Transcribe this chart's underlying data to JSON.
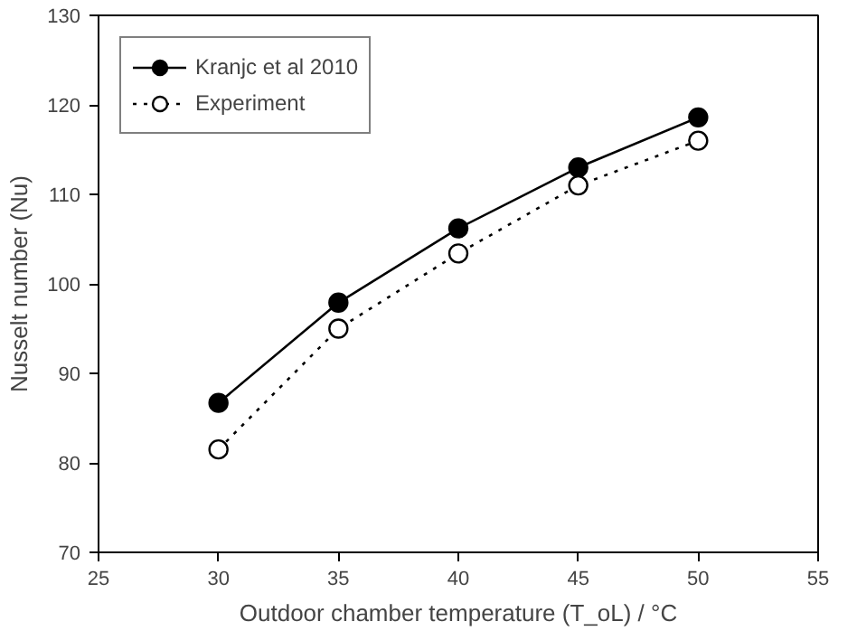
{
  "chart_data": {
    "type": "line",
    "xlabel": "Outdoor chamber temperature (T_oL) / °C",
    "ylabel": "Nusselt number (Nu)",
    "x": [
      30,
      35,
      40,
      45,
      50
    ],
    "series": [
      {
        "name": "Kranjc et al 2010",
        "color": "#000000",
        "values": [
          86.7,
          97.9,
          106.2,
          113.0,
          118.6
        ],
        "marker": "circle",
        "line_style": "solid"
      },
      {
        "name": "Experiment",
        "color": "#000000",
        "values": [
          81.5,
          95.0,
          103.4,
          111.0,
          116.0
        ],
        "marker": "circle_open",
        "line_style": "dotted"
      }
    ],
    "xlim": [
      25,
      55
    ],
    "xticks": [
      25,
      30,
      35,
      40,
      45,
      50,
      55
    ],
    "ylim": [
      70,
      130
    ],
    "yticks": [
      70,
      80,
      90,
      100,
      110,
      120,
      130
    ],
    "grid": false,
    "legend": "top left"
  }
}
